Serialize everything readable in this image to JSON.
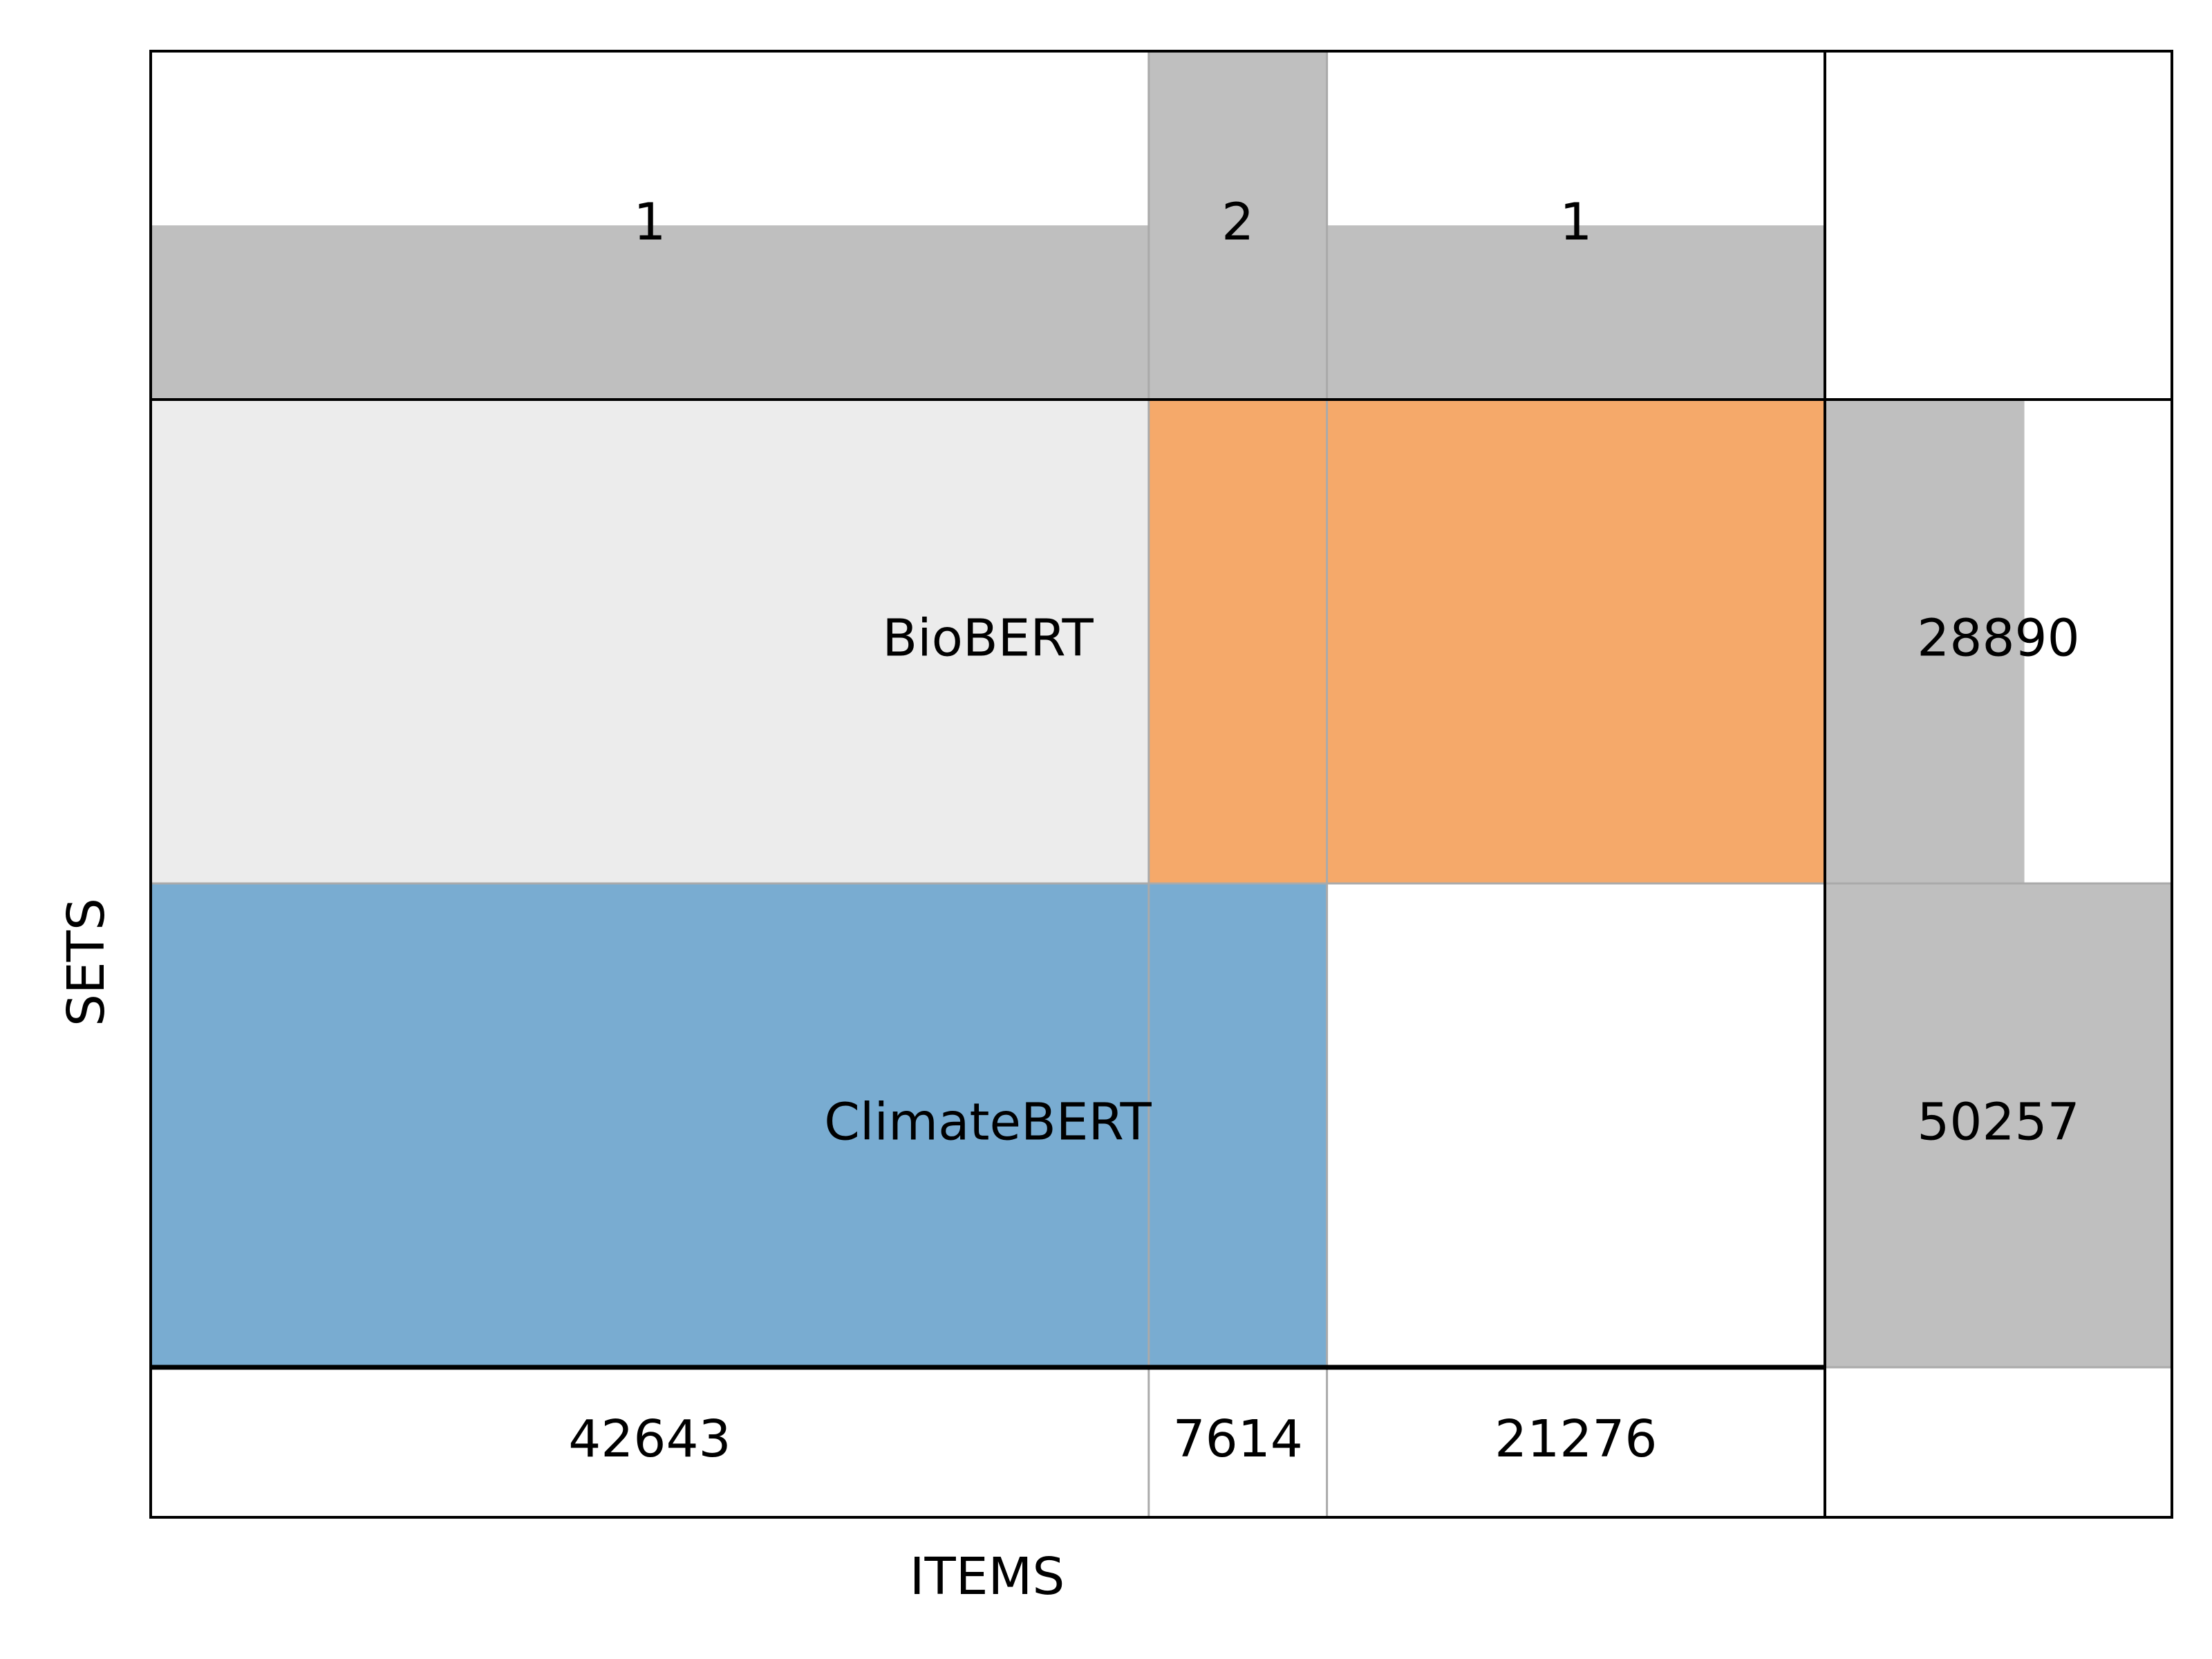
{
  "chart_data": {
    "type": "bar",
    "subtype": "set-membership-matrix",
    "xlabel": "ITEMS",
    "ylabel": "SETS",
    "sets": [
      {
        "name": "BioBERT",
        "size": 28890,
        "size_label": "28890",
        "color": "#f5a96a"
      },
      {
        "name": "ClimateBERT",
        "size": 50257,
        "size_label": "50257",
        "color": "#79acd1"
      }
    ],
    "columns": [
      {
        "degree": 1,
        "degree_label": "1",
        "count": 42643,
        "count_label": "42643",
        "members": [
          "ClimateBERT"
        ]
      },
      {
        "degree": 2,
        "degree_label": "2",
        "count": 7614,
        "count_label": "7614",
        "members": [
          "BioBERT",
          "ClimateBERT"
        ]
      },
      {
        "degree": 1,
        "degree_label": "1",
        "count": 21276,
        "count_label": "21276",
        "members": [
          "BioBERT"
        ]
      }
    ],
    "degree_range": [
      0,
      2
    ],
    "set_size_range": [
      0,
      50257
    ],
    "bar_color": "#bfbfbf",
    "label_band_color": "#ececec"
  }
}
